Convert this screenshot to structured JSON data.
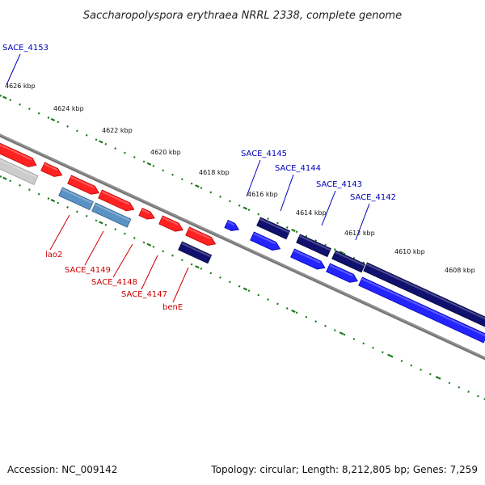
{
  "title": "Saccharopolyspora erythraea NRRL 2338, complete genome",
  "footer": {
    "accession": "Accession: NC_009142",
    "summary": "Topology: circular; Length: 8,212,805 bp; Genes: 7,259"
  },
  "colors": {
    "backbone": "#777777",
    "tick": "#1b7a1b",
    "gene_red": "#ff1a1a",
    "gene_blue": "#1a1aff",
    "gene_navy": "#0d0d6b",
    "gene_steel": "#4f86b8",
    "gene_gray": "#bbbbbb",
    "label_red": "#cc0000",
    "label_blue": "#0000bb"
  },
  "kbp_labels": [
    {
      "text": "4626 kbp"
    },
    {
      "text": "4624 kbp"
    },
    {
      "text": "4622 kbp"
    },
    {
      "text": "4620 kbp"
    },
    {
      "text": "4618 kbp"
    },
    {
      "text": "4616 kbp"
    },
    {
      "text": "4614 kbp"
    },
    {
      "text": "4612 kbp"
    },
    {
      "text": "4610 kbp"
    },
    {
      "text": "4608 kbp"
    }
  ],
  "gene_labels": [
    {
      "text": "SACE_4153",
      "color": "blue"
    },
    {
      "text": "SACE_4145",
      "color": "blue"
    },
    {
      "text": "SACE_4144",
      "color": "blue"
    },
    {
      "text": "SACE_4143",
      "color": "blue"
    },
    {
      "text": "SACE_4142",
      "color": "blue"
    },
    {
      "text": "lao2",
      "color": "red"
    },
    {
      "text": "SACE_4149",
      "color": "red"
    },
    {
      "text": "SACE_4148",
      "color": "red"
    },
    {
      "text": "SACE_4147",
      "color": "red"
    },
    {
      "text": "benE",
      "color": "red"
    }
  ]
}
